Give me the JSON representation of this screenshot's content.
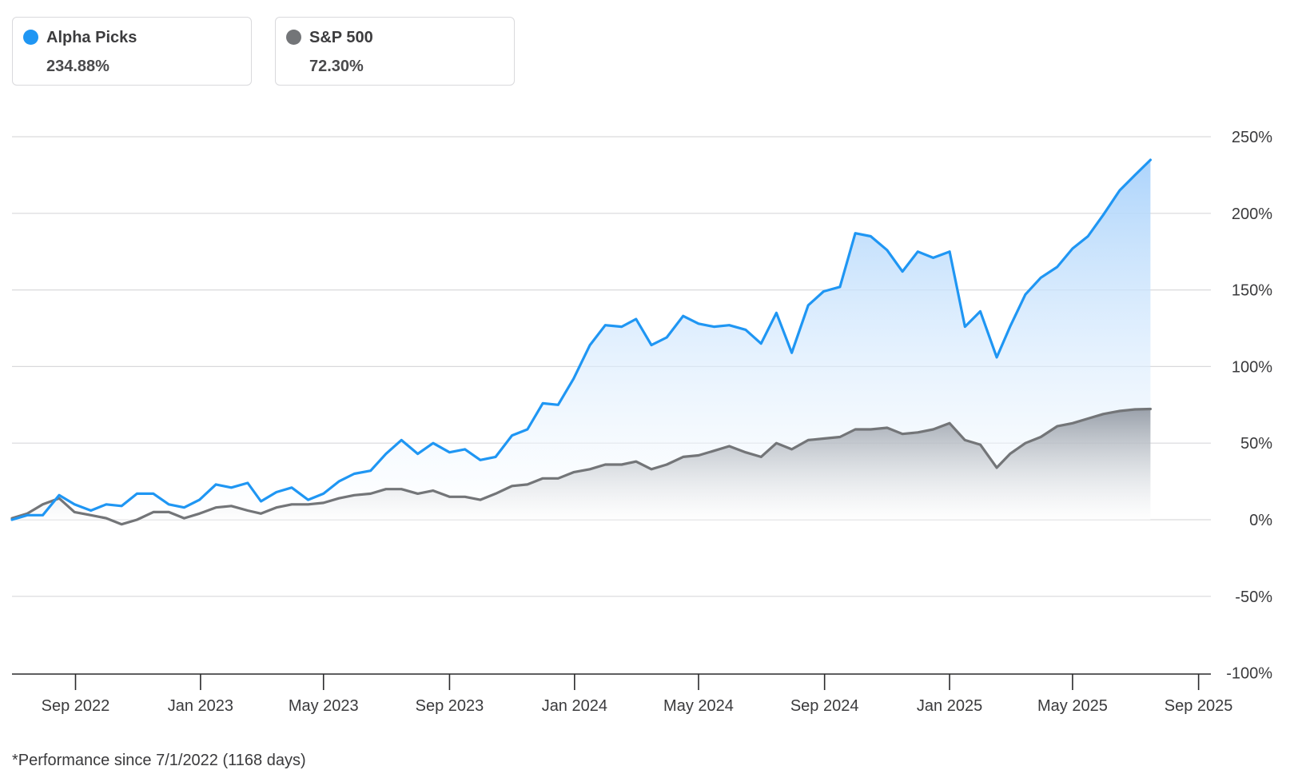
{
  "legend": {
    "alpha": {
      "name": "Alpha Picks",
      "value": "234.88%",
      "color": "#1f96f3"
    },
    "spx": {
      "name": "S&P 500",
      "value": "72.30%",
      "color": "#737578"
    }
  },
  "footnote": "*Performance since 7/1/2022 (1168 days)",
  "colors": {
    "grid": "#d9d9dc",
    "axis": "#2a2a2c",
    "alpha_fill_top": "#a9d2fb",
    "spx_fill_top": "#8b929c"
  },
  "chart_data": {
    "type": "area",
    "x_start": "2022-07-01",
    "x_end": "2025-09-13",
    "x_ticks": [
      {
        "date": "2022-09-01",
        "label": "Sep 2022"
      },
      {
        "date": "2023-01-01",
        "label": "Jan 2023"
      },
      {
        "date": "2023-05-01",
        "label": "May 2023"
      },
      {
        "date": "2023-09-01",
        "label": "Sep 2023"
      },
      {
        "date": "2024-01-01",
        "label": "Jan 2024"
      },
      {
        "date": "2024-05-01",
        "label": "May 2024"
      },
      {
        "date": "2024-09-01",
        "label": "Sep 2024"
      },
      {
        "date": "2025-01-01",
        "label": "Jan 2025"
      },
      {
        "date": "2025-05-01",
        "label": "May 2025"
      },
      {
        "date": "2025-09-01",
        "label": "Sep 2025"
      }
    ],
    "y_ticks": [
      {
        "value": 250,
        "label": "250%"
      },
      {
        "value": 200,
        "label": "200%"
      },
      {
        "value": 150,
        "label": "150%"
      },
      {
        "value": 100,
        "label": "100%"
      },
      {
        "value": 50,
        "label": "50%"
      },
      {
        "value": 0,
        "label": "0%"
      },
      {
        "value": -50,
        "label": "-50%"
      },
      {
        "value": -100,
        "label": "-100%"
      }
    ],
    "ylim": [
      -100,
      250
    ],
    "grid": true,
    "legend_position": "top-left",
    "series": [
      {
        "name": "Alpha Picks",
        "color": "#1f96f3",
        "points": [
          [
            "2022-07-01",
            0
          ],
          [
            "2022-07-16",
            3
          ],
          [
            "2022-07-31",
            3
          ],
          [
            "2022-08-16",
            16
          ],
          [
            "2022-08-31",
            10
          ],
          [
            "2022-09-16",
            6
          ],
          [
            "2022-10-01",
            10
          ],
          [
            "2022-10-16",
            9
          ],
          [
            "2022-10-31",
            17
          ],
          [
            "2022-11-16",
            17
          ],
          [
            "2022-12-01",
            10
          ],
          [
            "2022-12-16",
            8
          ],
          [
            "2022-12-31",
            13
          ],
          [
            "2023-01-16",
            23
          ],
          [
            "2023-01-31",
            21
          ],
          [
            "2023-02-16",
            24
          ],
          [
            "2023-03-01",
            12
          ],
          [
            "2023-03-16",
            18
          ],
          [
            "2023-03-31",
            21
          ],
          [
            "2023-04-16",
            13
          ],
          [
            "2023-05-01",
            17
          ],
          [
            "2023-05-16",
            25
          ],
          [
            "2023-05-31",
            30
          ],
          [
            "2023-06-16",
            32
          ],
          [
            "2023-07-01",
            43
          ],
          [
            "2023-07-16",
            52
          ],
          [
            "2023-08-01",
            43
          ],
          [
            "2023-08-16",
            50
          ],
          [
            "2023-09-01",
            44
          ],
          [
            "2023-09-16",
            46
          ],
          [
            "2023-10-01",
            39
          ],
          [
            "2023-10-16",
            41
          ],
          [
            "2023-11-01",
            55
          ],
          [
            "2023-11-16",
            59
          ],
          [
            "2023-12-01",
            76
          ],
          [
            "2023-12-16",
            75
          ],
          [
            "2023-12-31",
            92
          ],
          [
            "2024-01-16",
            114
          ],
          [
            "2024-01-31",
            127
          ],
          [
            "2024-02-16",
            126
          ],
          [
            "2024-03-01",
            131
          ],
          [
            "2024-03-16",
            114
          ],
          [
            "2024-03-31",
            119
          ],
          [
            "2024-04-16",
            133
          ],
          [
            "2024-05-01",
            128
          ],
          [
            "2024-05-16",
            126
          ],
          [
            "2024-05-31",
            127
          ],
          [
            "2024-06-16",
            124
          ],
          [
            "2024-07-01",
            115
          ],
          [
            "2024-07-16",
            135
          ],
          [
            "2024-07-31",
            109
          ],
          [
            "2024-08-16",
            140
          ],
          [
            "2024-08-31",
            149
          ],
          [
            "2024-09-16",
            152
          ],
          [
            "2024-10-01",
            187
          ],
          [
            "2024-10-16",
            185
          ],
          [
            "2024-11-01",
            176
          ],
          [
            "2024-11-16",
            162
          ],
          [
            "2024-12-01",
            175
          ],
          [
            "2024-12-16",
            171
          ],
          [
            "2025-01-01",
            175
          ],
          [
            "2025-01-16",
            126
          ],
          [
            "2025-01-31",
            136
          ],
          [
            "2025-02-16",
            106
          ],
          [
            "2025-03-01",
            126
          ],
          [
            "2025-03-16",
            147
          ],
          [
            "2025-03-31",
            158
          ],
          [
            "2025-04-16",
            165
          ],
          [
            "2025-05-01",
            177
          ],
          [
            "2025-05-16",
            185
          ],
          [
            "2025-05-31",
            199
          ],
          [
            "2025-06-16",
            215
          ],
          [
            "2025-07-01",
            225
          ],
          [
            "2025-07-16",
            234.88
          ]
        ]
      },
      {
        "name": "S&P 500",
        "color": "#737578",
        "points": [
          [
            "2022-07-01",
            1
          ],
          [
            "2022-07-16",
            4
          ],
          [
            "2022-07-31",
            10
          ],
          [
            "2022-08-16",
            14
          ],
          [
            "2022-08-31",
            5
          ],
          [
            "2022-09-16",
            3
          ],
          [
            "2022-10-01",
            1
          ],
          [
            "2022-10-16",
            -3
          ],
          [
            "2022-10-31",
            0
          ],
          [
            "2022-11-16",
            5
          ],
          [
            "2022-12-01",
            5
          ],
          [
            "2022-12-16",
            1
          ],
          [
            "2022-12-31",
            4
          ],
          [
            "2023-01-16",
            8
          ],
          [
            "2023-01-31",
            9
          ],
          [
            "2023-02-16",
            6
          ],
          [
            "2023-03-01",
            4
          ],
          [
            "2023-03-16",
            8
          ],
          [
            "2023-03-31",
            10
          ],
          [
            "2023-04-16",
            10
          ],
          [
            "2023-05-01",
            11
          ],
          [
            "2023-05-16",
            14
          ],
          [
            "2023-05-31",
            16
          ],
          [
            "2023-06-16",
            17
          ],
          [
            "2023-07-01",
            20
          ],
          [
            "2023-07-16",
            20
          ],
          [
            "2023-08-01",
            17
          ],
          [
            "2023-08-16",
            19
          ],
          [
            "2023-09-01",
            15
          ],
          [
            "2023-09-16",
            15
          ],
          [
            "2023-10-01",
            13
          ],
          [
            "2023-10-16",
            17
          ],
          [
            "2023-11-01",
            22
          ],
          [
            "2023-11-16",
            23
          ],
          [
            "2023-12-01",
            27
          ],
          [
            "2023-12-16",
            27
          ],
          [
            "2023-12-31",
            31
          ],
          [
            "2024-01-16",
            33
          ],
          [
            "2024-01-31",
            36
          ],
          [
            "2024-02-16",
            36
          ],
          [
            "2024-03-01",
            38
          ],
          [
            "2024-03-16",
            33
          ],
          [
            "2024-03-31",
            36
          ],
          [
            "2024-04-16",
            41
          ],
          [
            "2024-05-01",
            42
          ],
          [
            "2024-05-16",
            45
          ],
          [
            "2024-05-31",
            48
          ],
          [
            "2024-06-16",
            44
          ],
          [
            "2024-07-01",
            41
          ],
          [
            "2024-07-16",
            50
          ],
          [
            "2024-07-31",
            46
          ],
          [
            "2024-08-16",
            52
          ],
          [
            "2024-08-31",
            53
          ],
          [
            "2024-09-16",
            54
          ],
          [
            "2024-10-01",
            59
          ],
          [
            "2024-10-16",
            59
          ],
          [
            "2024-11-01",
            60
          ],
          [
            "2024-11-16",
            56
          ],
          [
            "2024-12-01",
            57
          ],
          [
            "2024-12-16",
            59
          ],
          [
            "2025-01-01",
            63
          ],
          [
            "2025-01-16",
            52
          ],
          [
            "2025-01-31",
            49
          ],
          [
            "2025-02-16",
            34
          ],
          [
            "2025-03-01",
            43
          ],
          [
            "2025-03-16",
            50
          ],
          [
            "2025-03-31",
            54
          ],
          [
            "2025-04-16",
            61
          ],
          [
            "2025-05-01",
            63
          ],
          [
            "2025-05-16",
            66
          ],
          [
            "2025-05-31",
            69
          ],
          [
            "2025-06-16",
            71
          ],
          [
            "2025-07-01",
            72
          ],
          [
            "2025-07-16",
            72.3
          ]
        ]
      }
    ]
  }
}
